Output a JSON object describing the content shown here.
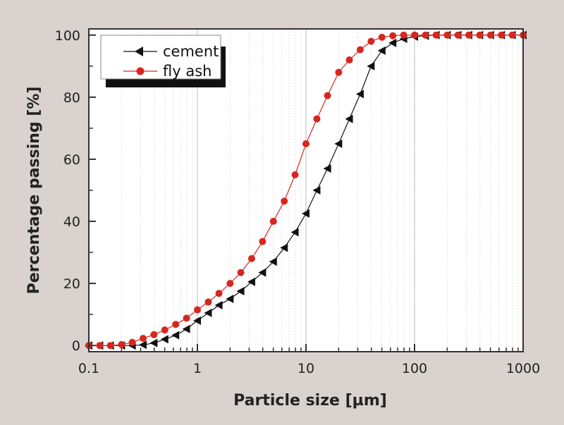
{
  "chart_data": {
    "type": "line",
    "title": "",
    "xlabel": "Particle size [µm]",
    "ylabel": "Percentage passing [%]",
    "xscale": "log",
    "xlim": [
      0.1,
      1000
    ],
    "ylim": [
      -2,
      102
    ],
    "xticks": [
      0.1,
      1,
      10,
      100,
      1000
    ],
    "xtick_labels": [
      "0.1",
      "1",
      "10",
      "100",
      "1000"
    ],
    "yticks": [
      0,
      20,
      40,
      60,
      80,
      100
    ],
    "ytick_labels": [
      "0",
      "20",
      "40",
      "60",
      "80",
      "100"
    ],
    "grid": true,
    "legend_position": "top-left",
    "x": [
      0.1,
      0.126,
      0.158,
      0.2,
      0.251,
      0.316,
      0.398,
      0.501,
      0.631,
      0.794,
      1,
      1.26,
      1.58,
      2,
      2.51,
      3.16,
      3.98,
      5.01,
      6.31,
      7.94,
      10,
      12.6,
      15.8,
      20,
      25.1,
      31.6,
      39.8,
      50.1,
      63.1,
      79.4,
      100,
      126,
      158,
      200,
      251,
      316,
      398,
      501,
      631,
      794,
      1000
    ],
    "series": [
      {
        "name": "cement",
        "color": "#111111",
        "marker": "left-triangle",
        "values": [
          0,
          0,
          0,
          0,
          0,
          0.2,
          0.8,
          2,
          3.3,
          5.3,
          8,
          10.5,
          13,
          15,
          17.5,
          20.5,
          23.5,
          27,
          31.5,
          36.5,
          42.5,
          50,
          57,
          65,
          73,
          81,
          90,
          95,
          97.5,
          98.8,
          99.5,
          99.8,
          100,
          100,
          100,
          100,
          100,
          100,
          100,
          100,
          100
        ]
      },
      {
        "name": "fly ash",
        "color": "#d8261f",
        "marker": "circle",
        "values": [
          0,
          0,
          0,
          0.3,
          1,
          2.3,
          3.5,
          5,
          6.8,
          8.8,
          11.5,
          14,
          16.8,
          20,
          23.5,
          28,
          33.5,
          40,
          46.5,
          55,
          65,
          73,
          80.5,
          88,
          92,
          95.3,
          98,
          99.3,
          99.8,
          100,
          100,
          100,
          100,
          100,
          100,
          100,
          100,
          100,
          100,
          100,
          100
        ]
      }
    ]
  }
}
